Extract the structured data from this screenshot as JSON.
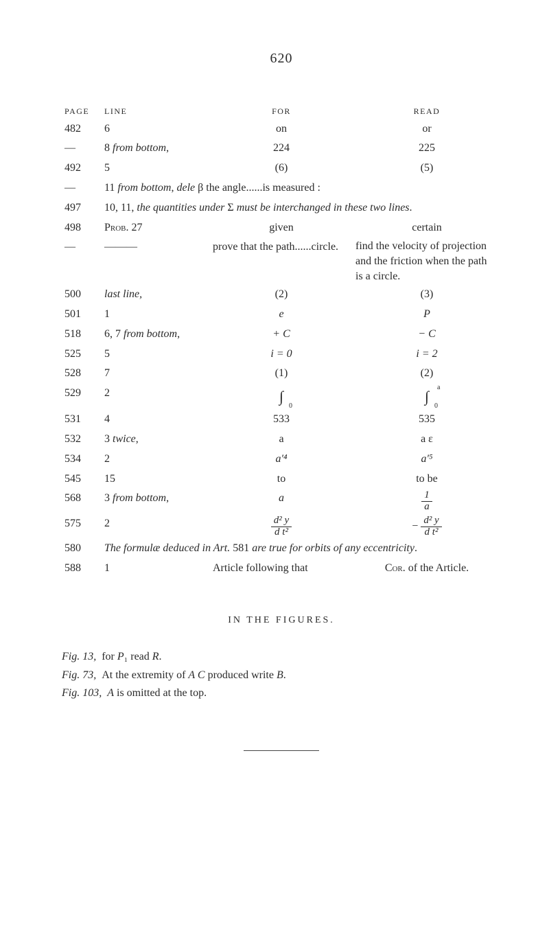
{
  "pageNumber": "620",
  "headers": {
    "page": "PAGE",
    "line": "LINE",
    "for": "FOR",
    "read": "READ"
  },
  "rows": [
    {
      "page": "482",
      "line": "6",
      "for": "on",
      "read": "or"
    },
    {
      "page": "—",
      "line": "8 from bottom,",
      "lineItalic": true,
      "lineItalicPart": "from bottom",
      "for": "224",
      "read": "225"
    },
    {
      "page": "492",
      "line": "5",
      "for": "(6)",
      "read": "(5)"
    },
    {
      "page": "—",
      "full": "11 from bottom, dele β the angle......is measured :"
    },
    {
      "page": "497",
      "full": "10, 11, the quantities under Σ must be interchanged in these two lines."
    },
    {
      "page": "498",
      "line": "Prob. 27",
      "for": "given",
      "read": "certain"
    },
    {
      "page": "—",
      "line": "———",
      "forLong": "prove that the path......circle.",
      "readMulti": [
        "find the velocity of projection",
        "and the friction when the path",
        "is a circle."
      ]
    },
    {
      "page": "500",
      "line": "last line,",
      "lineItalic": true,
      "for": "(2)",
      "read": "(3)"
    },
    {
      "page": "501",
      "line": "1",
      "for": "e",
      "forItalic": true,
      "read": "P",
      "readItalic": true
    },
    {
      "page": "518",
      "line": "6, 7 from bottom,",
      "lineItalicPart": "from bottom",
      "for": "+ C",
      "forItalic": true,
      "read": "− C",
      "readItalic": true
    },
    {
      "page": "525",
      "line": "5",
      "for": "i = 0",
      "forItalic": true,
      "read": "i = 2",
      "readItalic": true
    },
    {
      "page": "528",
      "line": "7",
      "for": "(1)",
      "read": "(2)"
    },
    {
      "page": "529",
      "line": "2",
      "intFor": {
        "lo": "0"
      },
      "intRead": {
        "hi": "a",
        "lo": "0"
      }
    },
    {
      "page": "531",
      "line": "4",
      "for": "533",
      "read": "535"
    },
    {
      "page": "532",
      "line": "3 twice,",
      "lineItalicPart": "twice",
      "for": "a",
      "read": "a ε"
    },
    {
      "page": "534",
      "line": "2",
      "for": "a′⁴",
      "forItalic": true,
      "read": "a′⁵",
      "readItalic": true
    },
    {
      "page": "545",
      "line": "15",
      "for": "to",
      "read": "to be"
    },
    {
      "page": "568",
      "line": "3 from bottom,",
      "lineItalicPart": "from bottom",
      "for": "a",
      "forItalic": true,
      "readFrac": {
        "num": "1",
        "den": "a"
      }
    },
    {
      "page": "575",
      "line": "2",
      "forFrac": {
        "num": "d² y",
        "den": "d t²"
      },
      "readFrac": {
        "num": "d² y",
        "den": "d t²",
        "neg": true
      }
    },
    {
      "page": "580",
      "full": "The formulæ deduced in Art. 581 are true for orbits of any eccentricity."
    },
    {
      "page": "588",
      "line": "1",
      "forLong": "Article following that",
      "read": "Cor. of the Article."
    }
  ],
  "figHeader": "IN THE FIGURES.",
  "figs": [
    {
      "label": "Fig. 13,",
      "text": "for P₁ read R."
    },
    {
      "label": "Fig. 73,",
      "text": "At the extremity of A C produced write B."
    },
    {
      "label": "Fig. 103,",
      "text": "A is omitted at the top."
    }
  ]
}
